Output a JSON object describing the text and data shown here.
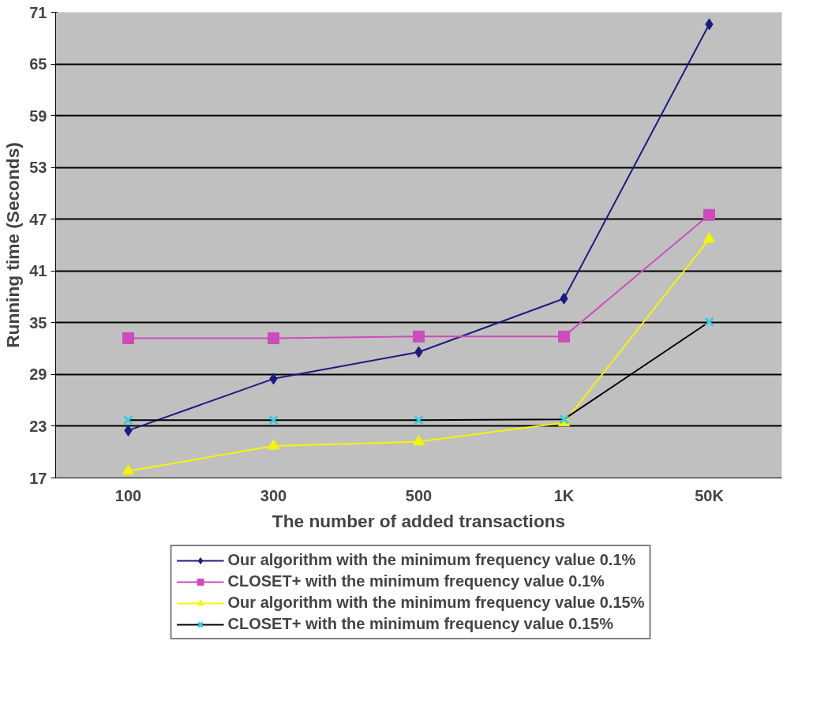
{
  "chart_data": {
    "type": "line",
    "xlabel": "The number of added transactions",
    "ylabel": "Running time (Seconds)",
    "categories": [
      "100",
      "300",
      "500",
      "1K",
      "50K"
    ],
    "ylim": [
      17,
      71
    ],
    "yticks": [
      17,
      23,
      29,
      35,
      41,
      47,
      53,
      59,
      65,
      71
    ],
    "grid": "y",
    "legend": "bottom",
    "series": [
      {
        "name": "Our algorithm with the minimum frequency value 0.1%",
        "color": "#1c1c80",
        "marker": "diamond",
        "values": [
          22.5,
          28.5,
          31.6,
          37.8,
          69.6
        ]
      },
      {
        "name": "CLOSET+ with the minimum frequency value 0.1%",
        "color": "#cc4cbc",
        "marker": "square",
        "values": [
          33.2,
          33.2,
          33.4,
          33.4,
          47.5
        ]
      },
      {
        "name": "Our algorithm with the minimum frequency value 0.15%",
        "color": "#f5f500",
        "marker": "triangle",
        "values": [
          17.8,
          20.7,
          21.2,
          23.4,
          44.7
        ]
      },
      {
        "name": "CLOSET+ with the minimum frequency value 0.15%",
        "color": "#000000",
        "colors": [
          "#40c8d8",
          "#40c8d8",
          "#40c8d8",
          "#40c8d8",
          "#40c8d8"
        ],
        "marker": "cross",
        "values": [
          23.7,
          23.7,
          23.7,
          23.8,
          35.1
        ]
      }
    ]
  }
}
